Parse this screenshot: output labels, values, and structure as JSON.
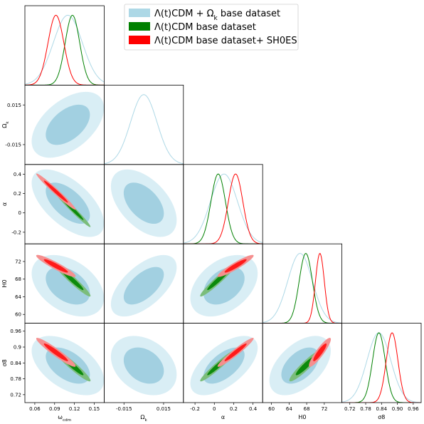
{
  "chart_data": {
    "type": "triangle-corner-plot",
    "legend": {
      "placement": "top-center",
      "entries": [
        {
          "label": "Λ(t)CDM + Ω",
          "label_sub": "k",
          "label_tail": " base dataset",
          "color": "#add8e6"
        },
        {
          "label": "Λ(t)CDM base dataset",
          "label_sub": "",
          "label_tail": "",
          "color": "#008000"
        },
        {
          "label": "Λ(t)CDM base dataset+ SH0ES",
          "label_sub": "",
          "label_tail": "",
          "color": "#ff0000"
        }
      ]
    },
    "parameters": [
      {
        "key": "wcdm",
        "label": "ω",
        "label_sub": "cdm",
        "range": [
          0.045,
          0.165
        ],
        "ticks": [
          "0.06",
          "0.09",
          "0.12",
          "0.15"
        ],
        "tick_values": [
          0.06,
          0.09,
          0.12,
          0.15
        ]
      },
      {
        "key": "omk",
        "label": "Ω",
        "label_sub": "k",
        "range": [
          -0.03,
          0.03
        ],
        "ticks": [
          "-0.015",
          "0.015"
        ],
        "tick_values": [
          -0.015,
          0.015
        ]
      },
      {
        "key": "alpha",
        "label": "α",
        "label_sub": "",
        "range": [
          -0.32,
          0.5
        ],
        "ticks": [
          "-0.2",
          "0",
          "0.2",
          "0.4"
        ],
        "tick_values": [
          -0.2,
          0,
          0.2,
          0.4
        ]
      },
      {
        "key": "H0",
        "label": "H0",
        "label_sub": "",
        "range": [
          58,
          76
        ],
        "ticks": [
          "60",
          "64",
          "68",
          "72"
        ],
        "tick_values": [
          60,
          64,
          68,
          72
        ]
      },
      {
        "key": "s8",
        "label": "σ8",
        "label_sub": "",
        "range": [
          0.69,
          0.99
        ],
        "ticks": [
          "0.72",
          "0.78",
          "0.84",
          "0.9",
          "0.96"
        ],
        "tick_values": [
          0.72,
          0.78,
          0.84,
          0.9,
          0.96
        ]
      }
    ],
    "x_tick_labels": [
      [
        "0.06",
        "0.09",
        "0.12",
        "0.15"
      ],
      [
        "-0.015",
        "0.015"
      ],
      [
        "-0.2",
        "0",
        "0.2",
        "0.4"
      ],
      [
        "60",
        "64",
        "68",
        "72"
      ],
      [
        "0.72",
        "0.78",
        "0.84",
        "0.90",
        "0.96"
      ]
    ],
    "series": [
      {
        "name": "Λ(t)CDM + Ωk base dataset",
        "color": "#add8e6",
        "fill_inner": "#a2d0e1",
        "fill_outer": "#d9eef5",
        "has_omk": true,
        "mean": {
          "wcdm": 0.11,
          "omk": 0.0,
          "alpha": 0.1,
          "H0": 66.5,
          "s8": 0.83
        },
        "sigma": {
          "wcdm": 0.022,
          "omk": 0.01,
          "alpha": 0.14,
          "H0": 2.8,
          "s8": 0.045
        },
        "corr": {
          "wcdm|omk": 0.5,
          "wcdm|alpha": -0.6,
          "wcdm|H0": -0.4,
          "wcdm|s8": -0.5,
          "omk|alpha": -0.5,
          "omk|H0": 0.6,
          "omk|s8": -0.3,
          "alpha|H0": 0.4,
          "alpha|s8": 0.6,
          "H0|s8": 0.5
        }
      },
      {
        "name": "Λ(t)CDM base dataset",
        "color": "#008000",
        "fill_inner": "#0c8a0c",
        "fill_outer": "#7bbd7b",
        "has_omk": false,
        "mean": {
          "wcdm": 0.117,
          "alpha": 0.04,
          "H0": 67.8,
          "s8": 0.83
        },
        "sigma": {
          "wcdm": 0.011,
          "alpha": 0.075,
          "H0": 1.5,
          "s8": 0.024
        },
        "corr": {
          "wcdm|alpha": -0.98,
          "wcdm|H0": -0.96,
          "wcdm|s8": -0.95,
          "alpha|H0": 0.96,
          "alpha|s8": 0.96,
          "H0|s8": 0.93
        }
      },
      {
        "name": "Λ(t)CDM base dataset+ SH0ES",
        "color": "#ff0000",
        "fill_inner": "#ff1a1a",
        "fill_outer": "#f58f8f",
        "has_omk": false,
        "mean": {
          "wcdm": 0.092,
          "alpha": 0.22,
          "H0": 71.0,
          "s8": 0.88
        },
        "sigma": {
          "wcdm": 0.012,
          "alpha": 0.075,
          "H0": 1.0,
          "s8": 0.022
        },
        "corr": {
          "wcdm|alpha": -0.98,
          "wcdm|H0": -0.93,
          "wcdm|s8": -0.95,
          "alpha|H0": 0.93,
          "alpha|s8": 0.96,
          "H0|s8": 0.9
        }
      }
    ]
  }
}
